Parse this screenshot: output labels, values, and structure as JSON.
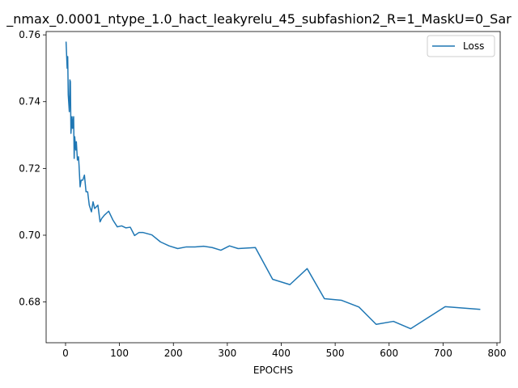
{
  "chart_data": {
    "type": "line",
    "title": "_nmax_0.0001_ntype_1.0_hact_leakyrelu_45_subfashion2_R=1_MaskU=0_Sar",
    "xlabel": "EPOCHS",
    "ylabel": "",
    "xlim": [
      -36,
      806
    ],
    "ylim": [
      0.6678,
      0.761
    ],
    "xticks": [
      0,
      100,
      200,
      300,
      400,
      500,
      600,
      700,
      800
    ],
    "yticks": [
      0.68,
      0.7,
      0.72,
      0.74,
      0.76
    ],
    "ytick_labels": [
      "0.68",
      "0.70",
      "0.72",
      "0.74",
      "0.76"
    ],
    "grid": false,
    "legend": {
      "position": "top-right",
      "entries": [
        "Loss"
      ]
    },
    "series": [
      {
        "name": "Loss",
        "color": "#1f77b4",
        "x": [
          1,
          3,
          4,
          5,
          7,
          8,
          9,
          10,
          12,
          13,
          15,
          16,
          17,
          19,
          20,
          22,
          24,
          25,
          27,
          29,
          32,
          35,
          38,
          41,
          44,
          48,
          51,
          54,
          57,
          60,
          64,
          67,
          72,
          80,
          88,
          96,
          104,
          112,
          120,
          128,
          136,
          144,
          160,
          176,
          192,
          208,
          224,
          240,
          256,
          272,
          288,
          304,
          320,
          352,
          384,
          416,
          448,
          480,
          512,
          544,
          576,
          608,
          640,
          704,
          768
        ],
        "y": [
          0.7578,
          0.75,
          0.7535,
          0.742,
          0.737,
          0.7465,
          0.746,
          0.7305,
          0.7355,
          0.732,
          0.7355,
          0.723,
          0.7295,
          0.7255,
          0.728,
          0.7225,
          0.7235,
          0.721,
          0.7145,
          0.7165,
          0.7165,
          0.718,
          0.713,
          0.713,
          0.709,
          0.707,
          0.71,
          0.708,
          0.7085,
          0.709,
          0.704,
          0.705,
          0.706,
          0.7072,
          0.7045,
          0.7025,
          0.7028,
          0.7022,
          0.7024,
          0.6999,
          0.7008,
          0.7008,
          0.7001,
          0.698,
          0.6968,
          0.696,
          0.6965,
          0.6965,
          0.6967,
          0.6963,
          0.6955,
          0.6968,
          0.696,
          0.6963,
          0.6868,
          0.6852,
          0.69,
          0.681,
          0.6805,
          0.6785,
          0.6733,
          0.6742,
          0.672,
          0.6786,
          0.6778
        ]
      }
    ]
  }
}
